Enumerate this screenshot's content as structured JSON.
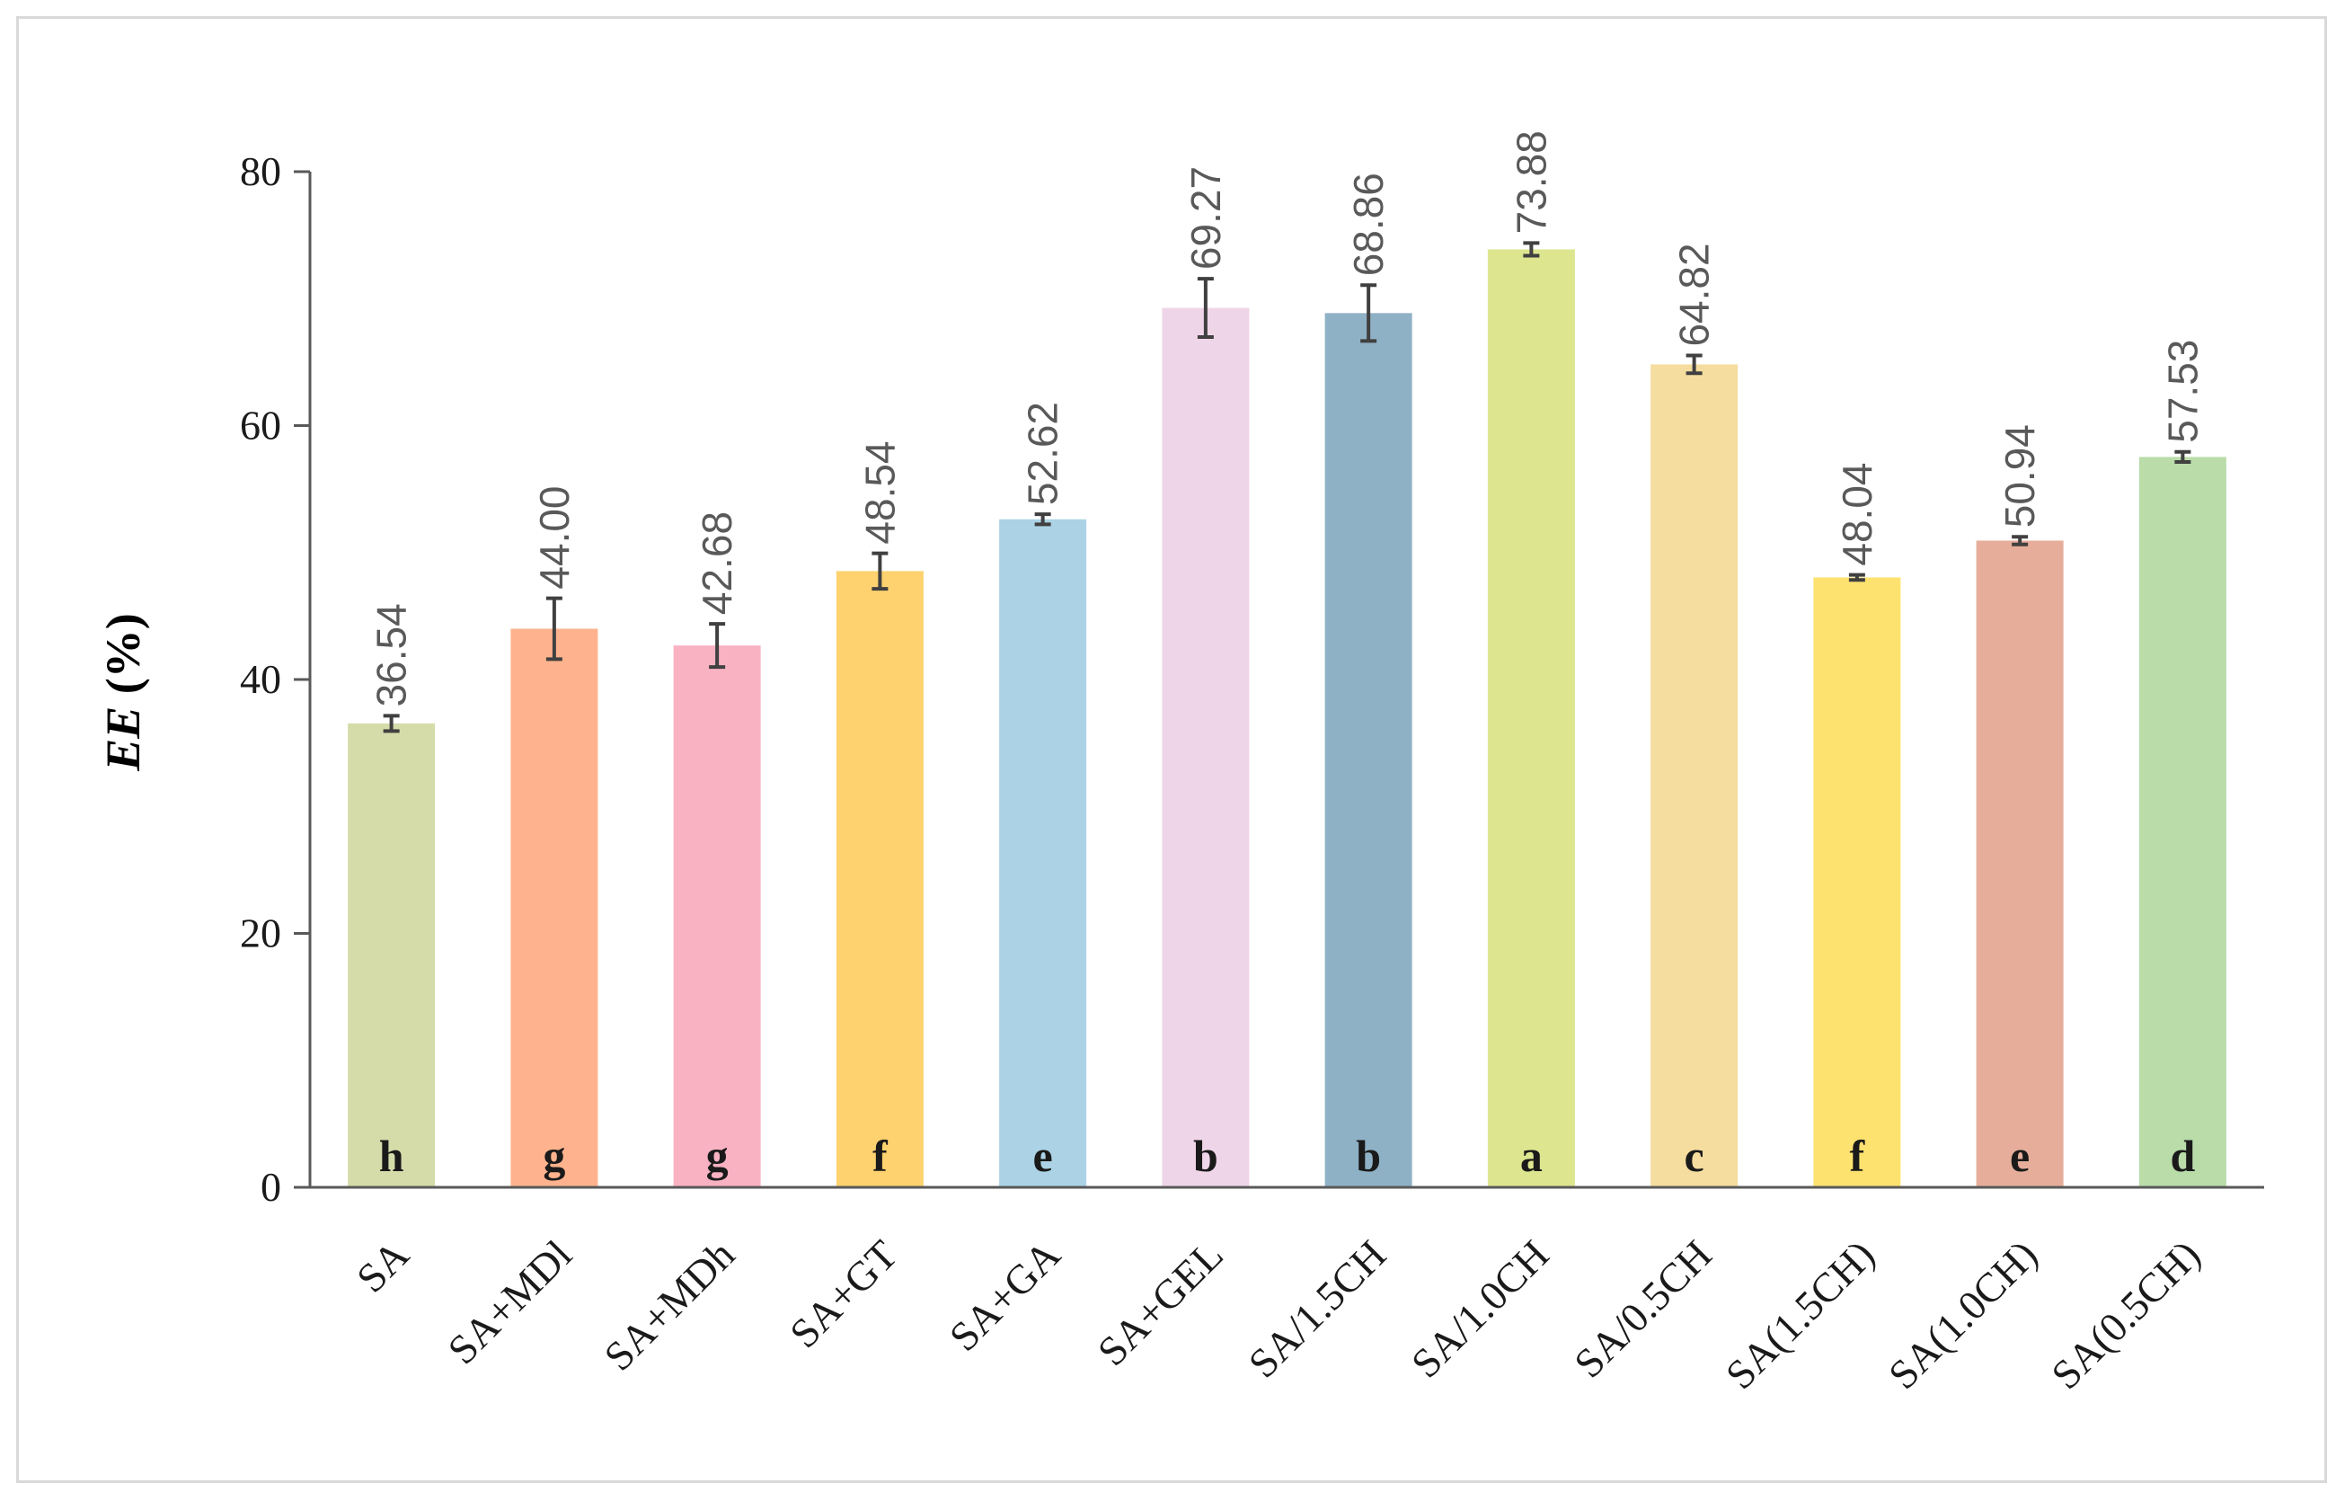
{
  "chart_data": {
    "type": "bar",
    "title": "",
    "xlabel": "",
    "ylabel": "EE (%)",
    "ylabel_italic_part": "EE",
    "ylabel_plain_part": " (%)",
    "ylim": [
      0,
      80
    ],
    "yticks": [
      0,
      20,
      40,
      60,
      80
    ],
    "grid": false,
    "legend": "none",
    "categories": [
      "SA",
      "SA+MDl",
      "SA+MDh",
      "SA+GT",
      "SA+GA",
      "SA+GEL",
      "SA/1.5CH",
      "SA/1.0CH",
      "SA/0.5CH",
      "SA(1.5CH)",
      "SA(1.0CH)",
      "SA(0.5CH)"
    ],
    "values": [
      36.54,
      44.0,
      42.68,
      48.54,
      52.62,
      69.27,
      68.86,
      73.88,
      64.82,
      48.04,
      50.94,
      57.53
    ],
    "value_labels": [
      "36.54",
      "44.00",
      "42.68",
      "48.54",
      "52.62",
      "69.27",
      "68.86",
      "73.88",
      "64.82",
      "48.04",
      "50.94",
      "57.53"
    ],
    "errors": [
      0.6,
      2.4,
      1.7,
      1.4,
      0.4,
      2.3,
      2.2,
      0.5,
      0.7,
      0.2,
      0.3,
      0.4
    ],
    "significance_letters": [
      "h",
      "g",
      "g",
      "f",
      "e",
      "b",
      "b",
      "a",
      "c",
      "f",
      "e",
      "d"
    ],
    "colors": [
      "#d5dca9",
      "#feb38e",
      "#f9b2c2",
      "#fdd26f",
      "#abd3e5",
      "#efd5e8",
      "#8fb1c6",
      "#dde68f",
      "#f5dd9f",
      "#fee270",
      "#e6ae9a",
      "#b9dca9"
    ]
  }
}
